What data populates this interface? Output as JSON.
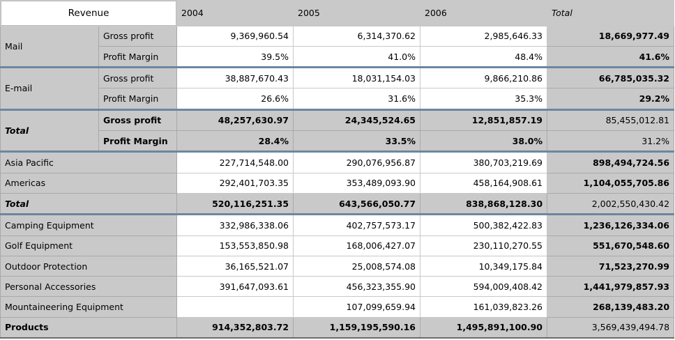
{
  "header": {
    "corner": "Revenue",
    "years": [
      "2004",
      "2005",
      "2006"
    ],
    "total": "Total"
  },
  "channels": {
    "mail": {
      "label": "Mail",
      "gross_profit": {
        "label": "Gross profit",
        "values": [
          "9,369,960.54",
          "6,314,370.62",
          "2,985,646.33"
        ],
        "total": "18,669,977.49"
      },
      "profit_margin": {
        "label": "Profit Margin",
        "values": [
          "39.5%",
          "41.0%",
          "48.4%"
        ],
        "total": "41.6%"
      }
    },
    "email": {
      "label": "E-mail",
      "gross_profit": {
        "label": "Gross profit",
        "values": [
          "38,887,670.43",
          "18,031,154.03",
          "9,866,210.86"
        ],
        "total": "66,785,035.32"
      },
      "profit_margin": {
        "label": "Profit Margin",
        "values": [
          "26.6%",
          "31.6%",
          "35.3%"
        ],
        "total": "29.2%"
      }
    },
    "total": {
      "label": "Total",
      "gross_profit": {
        "label": "Gross profit",
        "values": [
          "48,257,630.97",
          "24,345,524.65",
          "12,851,857.19"
        ],
        "total": "85,455,012.81"
      },
      "profit_margin": {
        "label": "Profit Margin",
        "values": [
          "28.4%",
          "33.5%",
          "38.0%"
        ],
        "total": "31.2%"
      }
    }
  },
  "regions": {
    "rows": [
      {
        "label": "Asia Pacific",
        "values": [
          "227,714,548.00",
          "290,076,956.87",
          "380,703,219.69"
        ],
        "total": "898,494,724.56"
      },
      {
        "label": "Americas",
        "values": [
          "292,401,703.35",
          "353,489,093.90",
          "458,164,908.61"
        ],
        "total": "1,104,055,705.86"
      }
    ],
    "total": {
      "label": "Total",
      "values": [
        "520,116,251.35",
        "643,566,050.77",
        "838,868,128.30"
      ],
      "total": "2,002,550,430.42"
    }
  },
  "products": {
    "rows": [
      {
        "label": "Camping Equipment",
        "values": [
          "332,986,338.06",
          "402,757,573.17",
          "500,382,422.83"
        ],
        "total": "1,236,126,334.06"
      },
      {
        "label": "Golf Equipment",
        "values": [
          "153,553,850.98",
          "168,006,427.07",
          "230,110,270.55"
        ],
        "total": "551,670,548.60"
      },
      {
        "label": "Outdoor Protection",
        "values": [
          "36,165,521.07",
          "25,008,574.08",
          "10,349,175.84"
        ],
        "total": "71,523,270.99"
      },
      {
        "label": "Personal Accessories",
        "values": [
          "391,647,093.61",
          "456,323,355.90",
          "594,009,408.42"
        ],
        "total": "1,441,979,857.93"
      },
      {
        "label": "Mountaineering Equipment",
        "values": [
          "",
          "107,099,659.94",
          "161,039,823.26"
        ],
        "total": "268,139,483.20"
      }
    ],
    "total": {
      "label": "Products",
      "values": [
        "914,352,803.72",
        "1,159,195,590.16",
        "1,495,891,100.90"
      ],
      "total": "3,569,439,494.78"
    }
  }
}
